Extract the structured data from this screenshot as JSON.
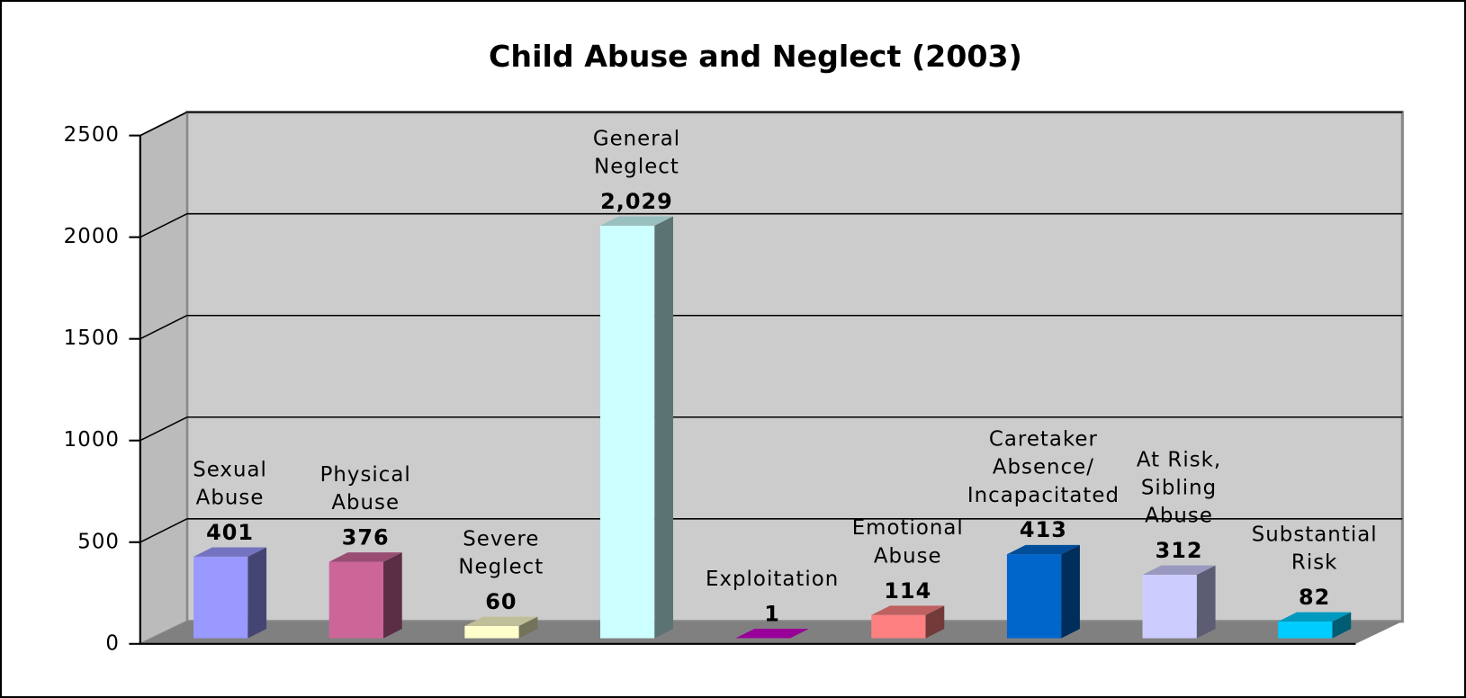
{
  "chart_data": {
    "type": "bar3d",
    "title": "Child Abuse and Neglect (2003)",
    "categories": [
      "Sexual\nAbuse",
      "Physical\nAbuse",
      "Severe\nNeglect",
      "General\nNeglect",
      "Exploitation",
      "Emotional\nAbuse",
      "Caretaker\nAbsence/\nIncapacitated",
      "At Risk,\nSibling\nAbuse",
      "Substantial\nRisk"
    ],
    "values": [
      401,
      376,
      60,
      2029,
      1,
      114,
      413,
      312,
      82
    ],
    "value_labels": [
      "401",
      "376",
      "60",
      "2,029",
      "1",
      "114",
      "413",
      "312",
      "82"
    ],
    "colors": [
      "#9999ff",
      "#cc6699",
      "#ffffcc",
      "#ccffff",
      "#cc00cc",
      "#ff8080",
      "#0066cc",
      "#ccccff",
      "#00ccff"
    ],
    "ylim": [
      0,
      2500
    ],
    "yticks": [
      0,
      500,
      1000,
      1500,
      2000,
      2500
    ],
    "grid": true
  }
}
